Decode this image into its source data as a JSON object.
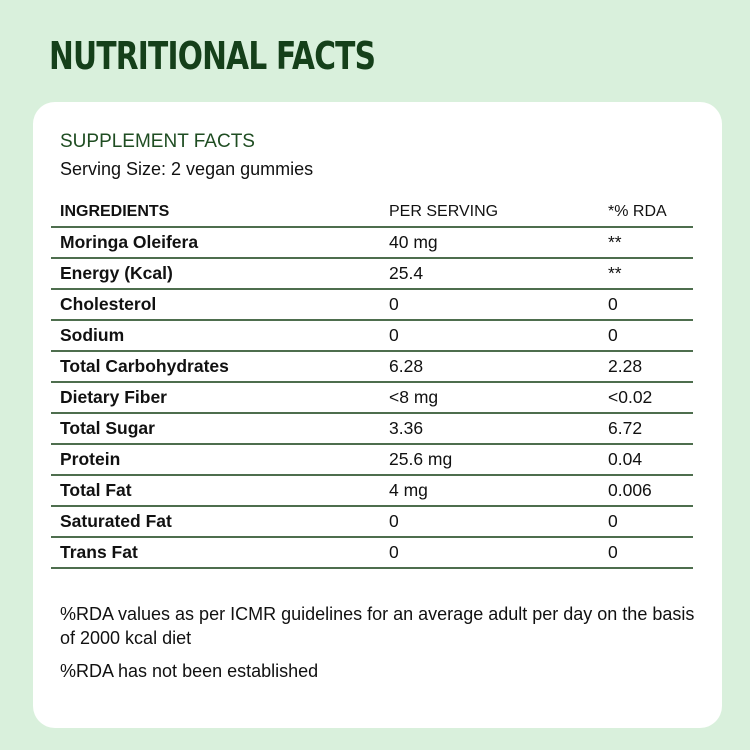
{
  "title": "NUTRITIONAL FACTS",
  "card": {
    "subtitle": "SUPPLEMENT FACTS",
    "serving_size": "Serving Size: 2 vegan gummies",
    "table": {
      "headers": [
        "INGREDIENTS",
        "PER SERVING",
        "*% RDA"
      ],
      "rows": [
        [
          "Moringa Oleifera",
          "40 mg",
          "**"
        ],
        [
          "Energy (Kcal)",
          "25.4",
          "**"
        ],
        [
          "Cholesterol",
          "0",
          "0"
        ],
        [
          "Sodium",
          "0",
          "0"
        ],
        [
          "Total Carbohydrates",
          "6.28",
          "2.28"
        ],
        [
          "Dietary Fiber",
          "<8 mg",
          "<0.02"
        ],
        [
          "Total Sugar",
          "3.36",
          "6.72"
        ],
        [
          "Protein",
          "25.6 mg",
          "0.04"
        ],
        [
          "Total Fat",
          "4 mg",
          "0.006"
        ],
        [
          "Saturated Fat",
          "0",
          "0"
        ],
        [
          "Trans Fat",
          "0",
          "0"
        ]
      ]
    },
    "notes": [
      "%RDA values as per ICMR guidelines for an average adult per day on the basis of 2000 kcal diet",
      "%RDA has not been established"
    ]
  },
  "colors": {
    "background": "#d9f0dc",
    "title": "#15401a",
    "rule": "#4e6e4e"
  }
}
